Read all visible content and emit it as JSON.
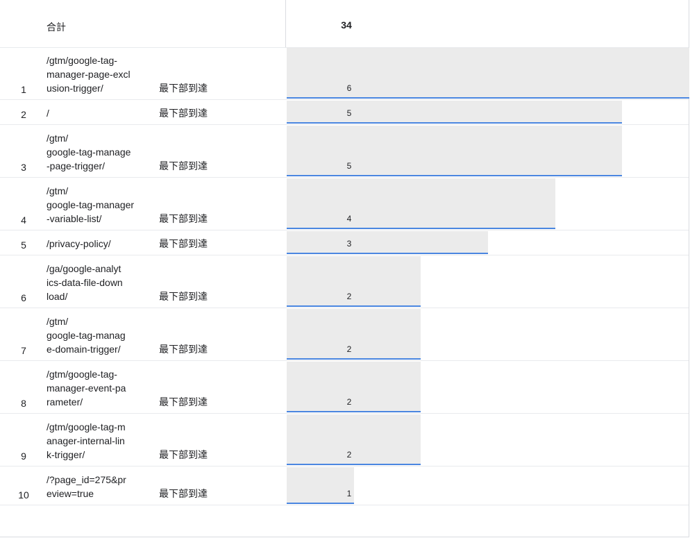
{
  "total": {
    "label": "合計",
    "value": "34"
  },
  "rows": [
    {
      "rank": "1",
      "path": "/gtm/google-tag-\nmanager-page-excl\nusion-trigger/",
      "event": "最下部到達",
      "count": "6",
      "count_num": 6
    },
    {
      "rank": "2",
      "path": "/",
      "event": "最下部到達",
      "count": "5",
      "count_num": 5
    },
    {
      "rank": "3",
      "path": "/gtm/\ngoogle-tag-manage\n-page-trigger/",
      "event": "最下部到達",
      "count": "5",
      "count_num": 5
    },
    {
      "rank": "4",
      "path": "/gtm/\ngoogle-tag-manager\n-variable-list/",
      "event": "最下部到達",
      "count": "4",
      "count_num": 4
    },
    {
      "rank": "5",
      "path": "/privacy-policy/",
      "event": "最下部到達",
      "count": "3",
      "count_num": 3
    },
    {
      "rank": "6",
      "path": "/ga/google-analyt\nics-data-file-down\nload/",
      "event": "最下部到達",
      "count": "2",
      "count_num": 2
    },
    {
      "rank": "7",
      "path": "/gtm/\ngoogle-tag-manag\ne-domain-trigger/",
      "event": "最下部到達",
      "count": "2",
      "count_num": 2
    },
    {
      "rank": "8",
      "path": "/gtm/google-tag-\nmanager-event-pa\nrameter/",
      "event": "最下部到達",
      "count": "2",
      "count_num": 2
    },
    {
      "rank": "9",
      "path": "/gtm/google-tag-m\nanager-internal-lin\nk-trigger/",
      "event": "最下部到達",
      "count": "2",
      "count_num": 2
    },
    {
      "rank": "10",
      "path": "/?page_id=275&pr\neview=true",
      "event": "最下部到達",
      "count": "1",
      "count_num": 1
    }
  ],
  "bar_scale_max": 6,
  "colors": {
    "bar_fill": "#ebebeb",
    "bar_underline": "#4a86e0",
    "divider": "#e8eaed"
  }
}
